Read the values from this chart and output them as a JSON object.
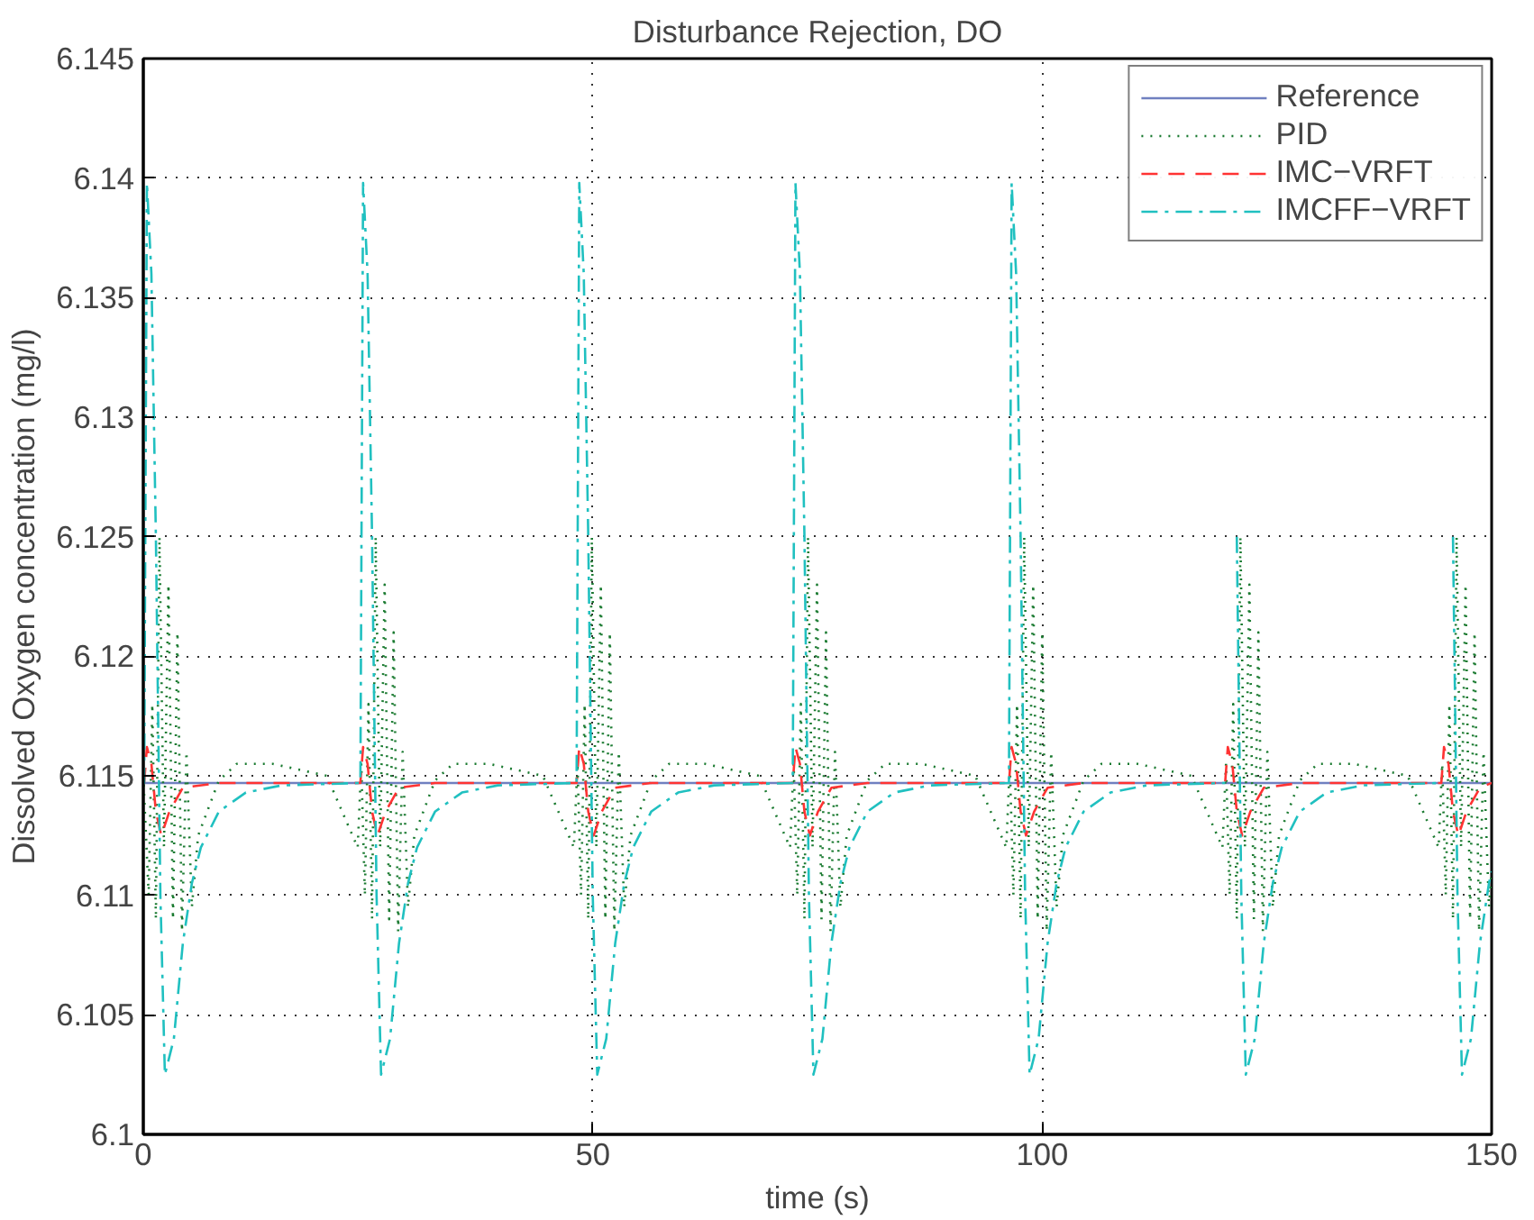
{
  "chart_data": {
    "type": "line",
    "title": "Disturbance Rejection, DO",
    "xlabel": "time (s)",
    "ylabel": "Dissolved Oxygen concentration (mg/l)",
    "xlim": [
      0,
      150
    ],
    "xticks": [
      0,
      50,
      100,
      150
    ],
    "ylim": [
      6.1,
      6.145
    ],
    "yticks": [
      6.1,
      6.105,
      6.11,
      6.115,
      6.12,
      6.125,
      6.13,
      6.135,
      6.14,
      6.145
    ],
    "grid": true,
    "legend": "top right",
    "series": [
      {
        "name": "Reference",
        "color": "#7080c0",
        "line_style": "solid",
        "x": [
          0,
          150
        ],
        "values": [
          6.1147,
          6.1147
        ]
      },
      {
        "name": "PID",
        "color": "#1a7a30",
        "line_style": "dotted",
        "x": [
          0,
          0.6,
          1.0,
          1.4,
          1.8,
          2.3,
          2.8,
          3.3,
          3.8,
          4.3,
          4.8,
          5.4,
          6.1,
          8.4,
          10.4,
          14.4,
          20.4,
          23.85,
          24.25,
          24.65,
          25.05,
          25.45,
          25.85,
          26.35,
          26.85,
          27.35,
          27.85,
          28.35,
          28.85,
          29.45,
          30.15,
          32.45,
          34.45,
          38.45,
          44.45,
          47.9,
          48.3,
          48.7,
          49.1,
          49.5,
          49.9,
          50.4,
          50.9,
          51.4,
          51.9,
          52.4,
          52.9,
          53.5,
          54.2,
          56.5,
          58.5,
          62.5,
          68.5,
          71.95,
          72.35,
          72.75,
          73.15,
          73.55,
          73.95,
          74.45,
          74.95,
          75.45,
          75.95,
          76.45,
          76.95,
          77.55,
          78.25,
          80.55,
          82.55,
          86.55,
          92.55,
          96.0,
          96.4,
          96.8,
          97.2,
          97.6,
          98.0,
          98.5,
          99.0,
          99.5,
          100.0,
          100.5,
          101.0,
          101.6,
          102.3,
          104.6,
          106.6,
          110.6,
          116.6,
          120.05,
          120.45,
          120.85,
          121.25,
          121.65,
          122.05,
          122.55,
          123.05,
          123.55,
          124.05,
          124.55,
          125.05,
          125.65,
          126.35,
          128.65,
          130.65,
          134.65,
          140.65,
          144.1,
          144.5,
          144.9,
          145.3,
          145.7,
          146.1,
          146.6,
          147.1,
          147.6,
          148.1,
          148.6,
          149.1,
          149.7,
          150
        ],
        "values": [
          6.115,
          6.11,
          6.118,
          6.109,
          6.125,
          6.112,
          6.123,
          6.109,
          6.121,
          6.1085,
          6.116,
          6.1095,
          6.1125,
          6.1148,
          6.1155,
          6.1155,
          6.115,
          6.112,
          6.1155,
          6.11,
          6.118,
          6.109,
          6.125,
          6.112,
          6.123,
          6.109,
          6.121,
          6.1085,
          6.116,
          6.1095,
          6.1125,
          6.1148,
          6.1155,
          6.1155,
          6.115,
          6.112,
          6.1155,
          6.11,
          6.118,
          6.109,
          6.125,
          6.112,
          6.123,
          6.109,
          6.121,
          6.1085,
          6.116,
          6.1095,
          6.1125,
          6.1148,
          6.1155,
          6.1155,
          6.115,
          6.112,
          6.1155,
          6.11,
          6.118,
          6.109,
          6.125,
          6.112,
          6.123,
          6.109,
          6.121,
          6.1085,
          6.116,
          6.1095,
          6.1125,
          6.1148,
          6.1155,
          6.1155,
          6.115,
          6.112,
          6.1155,
          6.11,
          6.118,
          6.109,
          6.125,
          6.112,
          6.123,
          6.109,
          6.121,
          6.1085,
          6.116,
          6.1095,
          6.1125,
          6.1148,
          6.1155,
          6.1155,
          6.115,
          6.112,
          6.1155,
          6.11,
          6.118,
          6.109,
          6.125,
          6.112,
          6.123,
          6.109,
          6.121,
          6.1085,
          6.116,
          6.1095,
          6.1125,
          6.1148,
          6.1155,
          6.1155,
          6.115,
          6.112,
          6.1155,
          6.11,
          6.118,
          6.109,
          6.125,
          6.112,
          6.123,
          6.109,
          6.121,
          6.1085,
          6.116,
          6.1095,
          6.111
        ]
      },
      {
        "name": "IMC−VRFT",
        "color": "#ff3333",
        "line_style": "dashed",
        "x": [
          0,
          0.1,
          0.4,
          0.9,
          1.4,
          2.0,
          2.9,
          4.4,
          8.4,
          24.15,
          24.45,
          24.95,
          25.45,
          26.05,
          26.95,
          28.45,
          32.45,
          48.2,
          48.5,
          49,
          49.5,
          50.1,
          51,
          52.5,
          56.5,
          72.25,
          72.55,
          73.05,
          73.55,
          74.15,
          75.05,
          76.55,
          80.55,
          96.3,
          96.6,
          97.1,
          97.6,
          98.2,
          99.1,
          100.6,
          104.6,
          120.35,
          120.65,
          121.15,
          121.65,
          122.25,
          123.15,
          124.65,
          128.65,
          144.4,
          144.7,
          145.2,
          145.7,
          146.3,
          147.2,
          148.7,
          150
        ],
        "values": [
          6.1147,
          6.1147,
          6.1162,
          6.1155,
          6.1135,
          6.1125,
          6.1135,
          6.1145,
          6.1147,
          6.1147,
          6.1162,
          6.1155,
          6.1135,
          6.1125,
          6.1135,
          6.1145,
          6.1147,
          6.1147,
          6.1162,
          6.1155,
          6.1135,
          6.1125,
          6.1135,
          6.1145,
          6.1147,
          6.1147,
          6.1162,
          6.1155,
          6.1135,
          6.1125,
          6.1135,
          6.1145,
          6.1147,
          6.1147,
          6.1162,
          6.1155,
          6.1135,
          6.1125,
          6.1135,
          6.1145,
          6.1147,
          6.1147,
          6.1162,
          6.1155,
          6.1135,
          6.1125,
          6.1135,
          6.1145,
          6.1147,
          6.1147,
          6.1162,
          6.1155,
          6.1135,
          6.1125,
          6.1135,
          6.1145,
          6.1147
        ]
      },
      {
        "name": "IMCFF−VRFT",
        "color": "#20c0c0",
        "line_style": "dashdot",
        "x": [
          0,
          0.1,
          0.4,
          0.9,
          1.4,
          1.9,
          2.4,
          3.4,
          4.4,
          5.4,
          6.4,
          8.4,
          11.4,
          15.4,
          24.15,
          24.45,
          24.95,
          25.45,
          25.95,
          26.45,
          27.45,
          28.45,
          29.45,
          30.45,
          32.45,
          35.45,
          39.45,
          48.2,
          48.5,
          49,
          49.5,
          50,
          50.5,
          51.5,
          52.5,
          53.5,
          54.5,
          56.5,
          59.5,
          63.5,
          72.25,
          72.55,
          73.05,
          73.55,
          74.05,
          74.55,
          75.55,
          76.55,
          77.55,
          78.55,
          80.55,
          83.55,
          87.55,
          96.3,
          96.6,
          97.1,
          97.6,
          98.1,
          98.6,
          99.6,
          100.6,
          101.6,
          102.6,
          104.6,
          107.6,
          111.6,
          120.35,
          120.65,
          121.15,
          121.65,
          122.15,
          122.65,
          123.65,
          124.65,
          125.65,
          126.65,
          128.65,
          131.65,
          135.65,
          144.4,
          144.7,
          145.2,
          145.7,
          146.2,
          146.7,
          147.7,
          148.7,
          149.7,
          150
        ],
        "values": [
          6.1147,
          6.1147,
          6.1398,
          6.136,
          6.125,
          6.11,
          6.1025,
          6.104,
          6.108,
          6.1105,
          6.112,
          6.1135,
          6.1143,
          6.1146,
          6.1147,
          6.1398,
          6.136,
          6.125,
          6.11,
          6.1025,
          6.104,
          6.108,
          6.1105,
          6.112,
          6.1135,
          6.1143,
          6.1146,
          6.1147,
          6.1398,
          6.136,
          6.125,
          6.11,
          6.1025,
          6.104,
          6.108,
          6.1105,
          6.112,
          6.1135,
          6.1143,
          6.1146,
          6.1147,
          6.1398,
          6.136,
          6.125,
          6.11,
          6.1025,
          6.104,
          6.108,
          6.1105,
          6.112,
          6.1135,
          6.1143,
          6.1146,
          6.1147,
          6.1398,
          6.136,
          6.125,
          6.11,
          6.1025,
          6.104,
          6.108,
          6.1105,
          6.112,
          6.1135,
          6.1143,
          6.1146,
          6.1147,
          null,
          null,
          6.125,
          6.11,
          6.1025,
          6.104,
          6.108,
          6.1105,
          6.112,
          6.1135,
          6.1143,
          6.1146,
          6.1147,
          null,
          null,
          6.125,
          6.11,
          6.1025,
          6.104,
          6.108,
          6.1105,
          6.111
        ]
      }
    ]
  }
}
